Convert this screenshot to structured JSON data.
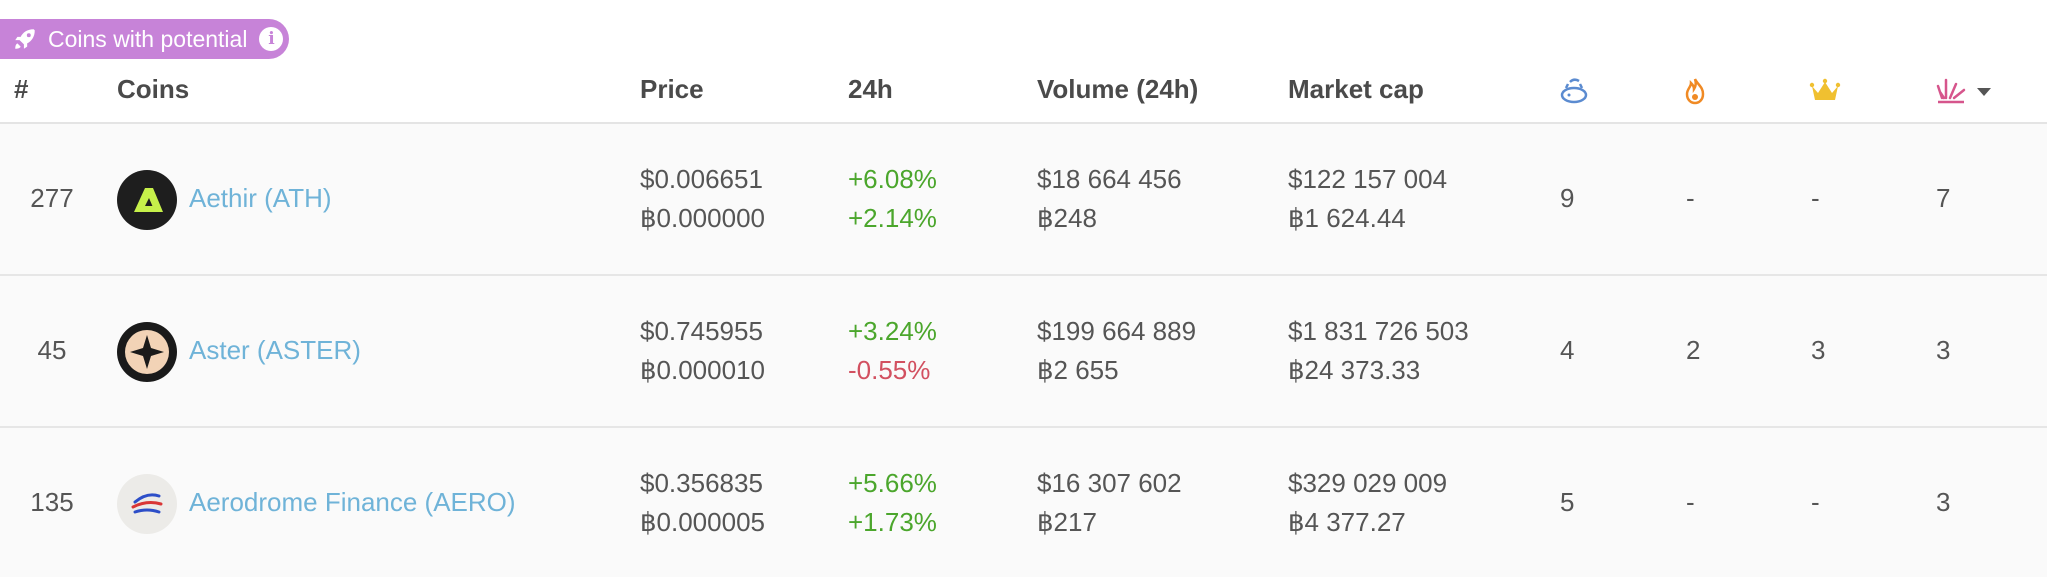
{
  "badge": {
    "label": "Coins with potential",
    "icon": "rocket-icon",
    "info_icon": "info-icon",
    "color": "#c783d8"
  },
  "header": {
    "rank": "#",
    "coins": "Coins",
    "price": "Price",
    "change": "24h",
    "volume": "Volume (24h)",
    "market_cap": "Market cap",
    "icon_cols": [
      "piggy-bank-icon",
      "flame-icon",
      "crown-icon",
      "explosion-icon"
    ],
    "sort_indicator": "chevron-down-icon"
  },
  "rows": [
    {
      "rank": "277",
      "name": "Aethir (ATH)",
      "price_usd": "$0.006651",
      "price_btc": "฿0.000000",
      "change_usd": "+6.08%",
      "change_btc": "+2.14%",
      "volume_usd": "$18 664 456",
      "volume_btc": "฿248",
      "mcap_usd": "$122 157 004",
      "mcap_btc": "฿1 624.44",
      "c1": "9",
      "c2": "-",
      "c3": "-",
      "c4": "7"
    },
    {
      "rank": "45",
      "name": "Aster (ASTER)",
      "price_usd": "$0.745955",
      "price_btc": "฿0.000010",
      "change_usd": "+3.24%",
      "change_btc": "-0.55%",
      "volume_usd": "$199 664 889",
      "volume_btc": "฿2 655",
      "mcap_usd": "$1 831 726 503",
      "mcap_btc": "฿24 373.33",
      "c1": "4",
      "c2": "2",
      "c3": "3",
      "c4": "3"
    },
    {
      "rank": "135",
      "name": "Aerodrome Finance (AERO)",
      "price_usd": "$0.356835",
      "price_btc": "฿0.000005",
      "change_usd": "+5.66%",
      "change_btc": "+1.73%",
      "volume_usd": "$16 307 602",
      "volume_btc": "฿217",
      "mcap_usd": "$329 029 009",
      "mcap_btc": "฿4 377.27",
      "c1": "5",
      "c2": "-",
      "c3": "-",
      "c4": "3"
    }
  ],
  "colors": {
    "link": "#6fb3d8",
    "positive": "#4ba62c",
    "negative": "#d25060",
    "piggy": "#5b8bd0",
    "flame": "#f08a24",
    "crown": "#f0c030",
    "explosion": "#d6558c"
  }
}
